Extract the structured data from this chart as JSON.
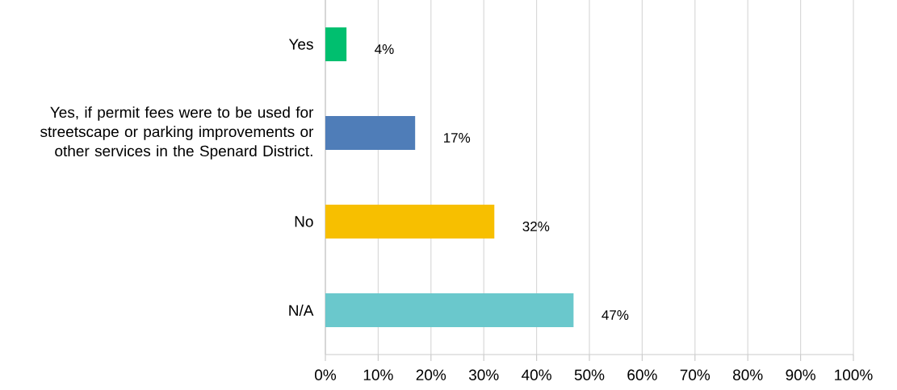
{
  "chart_data": {
    "type": "bar",
    "orientation": "horizontal",
    "categories": [
      "Yes",
      "Yes, if permit fees were to be used for streetscape or parking improvements or other services in the Spenard District.",
      "No",
      "N/A"
    ],
    "values": [
      4,
      17,
      32,
      47
    ],
    "colors": [
      "#00bf6f",
      "#4f7db8",
      "#f7bf00",
      "#6ac8cc"
    ],
    "value_labels": [
      "4%",
      "17%",
      "32%",
      "47%"
    ],
    "xlim": [
      0,
      100
    ],
    "xticks": [
      {
        "value": 0,
        "label": "0%"
      },
      {
        "value": 10,
        "label": "10%"
      },
      {
        "value": 20,
        "label": "20%"
      },
      {
        "value": 30,
        "label": "30%"
      },
      {
        "value": 40,
        "label": "40%"
      },
      {
        "value": 50,
        "label": "50%"
      },
      {
        "value": 60,
        "label": "60%"
      },
      {
        "value": 70,
        "label": "70%"
      },
      {
        "value": 80,
        "label": "80%"
      },
      {
        "value": 90,
        "label": "90%"
      },
      {
        "value": 100,
        "label": "100%"
      }
    ],
    "grid": "x"
  }
}
